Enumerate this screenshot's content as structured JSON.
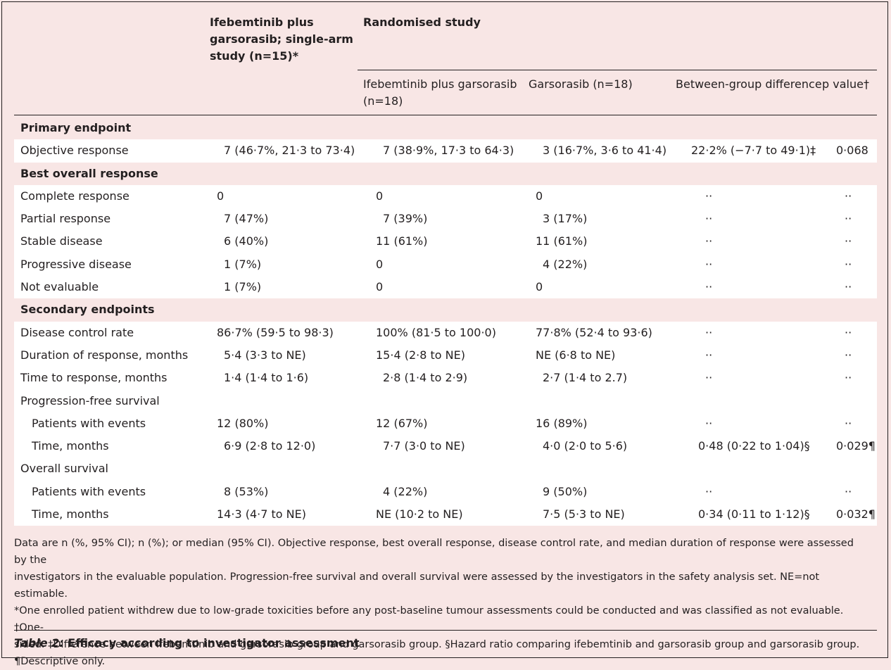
{
  "header": {
    "col1_title": "Ifebemtinib plus garsorasib; single-arm study (n=15)*",
    "col1_line1": "Ifebemtinib plus",
    "col1_line2": "garsorasib; single-arm",
    "col1_line3": "study (n=15)*",
    "randomised_title": "Randomised study",
    "sub_col1_line1": "Ifebemtinib plus garsorasib",
    "sub_col1_line2": "(n=18)",
    "sub_col2": "Garsorasib (n=18)",
    "sub_col3": "Between-group difference",
    "sub_col4": "p value†"
  },
  "rows": [
    {
      "type": "section",
      "label": "Primary endpoint",
      "white": false
    },
    {
      "type": "data",
      "label": "Objective response",
      "indent": false,
      "white": true,
      "c1": "7 (46·7%, 21·3 to 73·4)",
      "c2": "7 (38·9%, 17·3 to 64·3)",
      "c3": "3 (16·7%, 3·6 to 41·4)",
      "c4": "22·2% (−7·7 to 49·1)‡",
      "c5": "0·068"
    },
    {
      "type": "section",
      "label": "Best overall response",
      "white": false
    },
    {
      "type": "data",
      "label": "Complete response",
      "indent": false,
      "white": true,
      "c1": "0",
      "c2": "0",
      "c3": "0",
      "c4": "··",
      "c5": "··"
    },
    {
      "type": "data",
      "label": "Partial response",
      "indent": false,
      "white": true,
      "c1": "7 (47%)",
      "c2": "7 (39%)",
      "c3": "3 (17%)",
      "c4": "··",
      "c5": "··"
    },
    {
      "type": "data",
      "label": "Stable disease",
      "indent": false,
      "white": true,
      "c1": "6 (40%)",
      "c2": "11 (61%)",
      "c3": "11 (61%)",
      "c4": "··",
      "c5": "··"
    },
    {
      "type": "data",
      "label": "Progressive disease",
      "indent": false,
      "white": true,
      "c1": "1 (7%)",
      "c2": "0",
      "c3": "4 (22%)",
      "c4": "··",
      "c5": "··"
    },
    {
      "type": "data",
      "label": "Not evaluable",
      "indent": false,
      "white": true,
      "c1": "1 (7%)",
      "c2": "0",
      "c3": "0",
      "c4": "··",
      "c5": "··"
    },
    {
      "type": "section",
      "label": "Secondary endpoints",
      "white": false
    },
    {
      "type": "data",
      "label": "Disease control rate",
      "indent": false,
      "white": true,
      "c1": "86·7% (59·5 to 98·3)",
      "c2": "100% (81·5 to 100·0)",
      "c3": "77·8% (52·4 to 93·6)",
      "c4": "··",
      "c5": "··"
    },
    {
      "type": "data",
      "label": "Duration of response, months",
      "indent": false,
      "white": true,
      "c1": "5·4 (3·3 to NE)",
      "c2": "15·4 (2·8 to NE)",
      "c3": "NE (6·8 to NE)",
      "c4": "··",
      "c5": "··"
    },
    {
      "type": "data",
      "label": "Time to response, months",
      "indent": false,
      "white": true,
      "c1": "1·4 (1·4 to 1·6)",
      "c2": "2·8 (1·4 to 2·9)",
      "c3": "2·7 (1·4 to 2.7)",
      "c4": "··",
      "c5": "··"
    },
    {
      "type": "data",
      "label": "Progression-free survival",
      "indent": false,
      "white": true,
      "c1": "",
      "c2": "",
      "c3": "",
      "c4": "",
      "c5": ""
    },
    {
      "type": "data",
      "label": "Patients with events",
      "indent": true,
      "white": true,
      "c1": "12 (80%)",
      "c2": "12 (67%)",
      "c3": "16 (89%)",
      "c4": "··",
      "c5": "··"
    },
    {
      "type": "data",
      "label": "Time, months",
      "indent": true,
      "white": true,
      "c1": "6·9 (2·8 to 12·0)",
      "c2": "7·7 (3·0 to NE)",
      "c3": "4·0 (2·0 to 5·6)",
      "c4": "0·48 (0·22 to 1·04)§",
      "c5": "0·029¶"
    },
    {
      "type": "data",
      "label": "Overall survival",
      "indent": false,
      "white": true,
      "c1": "",
      "c2": "",
      "c3": "",
      "c4": "",
      "c5": ""
    },
    {
      "type": "data",
      "label": "Patients with events",
      "indent": true,
      "white": true,
      "c1": "8 (53%)",
      "c2": "4 (22%)",
      "c3": "9 (50%)",
      "c4": "··",
      "c5": "··"
    },
    {
      "type": "data",
      "label": "Time, months",
      "indent": true,
      "white": true,
      "c1": "14·3 (4·7 to NE)",
      "c2": "NE (10·2 to NE)",
      "c3": "7·5 (5·3 to NE)",
      "c4": "0·34 (0·11 to 1·12)§",
      "c5": "0·032¶"
    }
  ],
  "notes": {
    "line1": "Data are n (%, 95% CI); n (%); or median (95% CI). Objective response, best overall response, disease control rate, and median duration of response were assessed by the",
    "line2": "investigators in the evaluable population. Progression-free survival and overall survival were assessed by the investigators in the safety analysis set. NE=not estimable.",
    "line3": "*One enrolled patient withdrew due to low-grade toxicities before any post-baseline tumour assessments could be conducted and was classified as not evaluable. †One-",
    "line4": "sided. ‡Difference between ifebemtinib and garsorasib group and garsorasib group. §Hazard ratio comparing ifebemtinib and garsorasib group and garsorasib group.",
    "line5": "¶Descriptive only."
  },
  "caption": {
    "label": "Table 2:",
    "text": " Efficacy according to investigator assessment"
  }
}
